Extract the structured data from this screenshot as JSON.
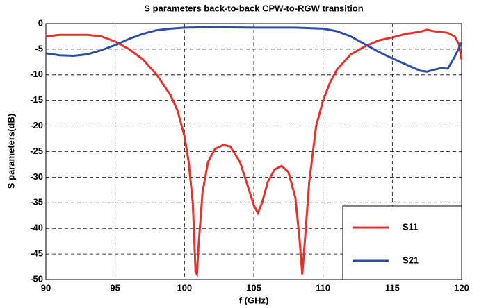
{
  "chart_data": {
    "type": "line",
    "title": "S parameters back-to-back CPW-to-RGW transition",
    "x_label": "f (GHz)",
    "y_label": "S parameters(dB)",
    "xlim": [
      90,
      120
    ],
    "xticks": [
      90,
      95,
      100,
      105,
      110,
      115,
      120
    ],
    "ylim": [
      -50,
      0
    ],
    "yticks": [
      0,
      -5,
      -10,
      -15,
      -20,
      -25,
      -30,
      -35,
      -40,
      -45,
      -50
    ],
    "grid": true,
    "legend": "lower right",
    "series": [
      {
        "name": "S11",
        "color": "#e8302c",
        "x": [
          90,
          91,
          93,
          94,
          95,
          96,
          97,
          98,
          99,
          99.5,
          100,
          100.3,
          100.6,
          100.8,
          100.9,
          101,
          101.3,
          101.7,
          102.2,
          102.8,
          103.3,
          104,
          104.6,
          105,
          105.3,
          105.6,
          106,
          106.5,
          107,
          107.5,
          108,
          108.3,
          108.5,
          108.7,
          109,
          109.5,
          110,
          110.5,
          111,
          112,
          113,
          114,
          115,
          116,
          117,
          117.5,
          118,
          119,
          119.5,
          119.8,
          120
        ],
        "values": [
          -2.5,
          -2.2,
          -2.2,
          -2.5,
          -3.5,
          -5,
          -7,
          -10,
          -14,
          -17,
          -22,
          -27,
          -35,
          -48.5,
          -49,
          -44,
          -33,
          -27,
          -24.5,
          -23.7,
          -24,
          -27,
          -32,
          -35.5,
          -37,
          -35,
          -31,
          -28.5,
          -27.8,
          -29,
          -34,
          -42,
          -49,
          -42,
          -31,
          -20,
          -15,
          -11.5,
          -9,
          -6,
          -4.5,
          -3.3,
          -2.7,
          -2,
          -1.6,
          -1.2,
          -1.5,
          -1.8,
          -2.5,
          -4,
          -7
        ]
      },
      {
        "name": "S21",
        "color": "#2e4fa3",
        "x": [
          90,
          91,
          92,
          93,
          94,
          95,
          96,
          97,
          98,
          99,
          100,
          102,
          105,
          108,
          110,
          111,
          112,
          113,
          114,
          115,
          116,
          117,
          117.5,
          118,
          118.5,
          119,
          119.5,
          120
        ],
        "values": [
          -5.8,
          -6.2,
          -6.3,
          -6,
          -5.2,
          -4.2,
          -3,
          -2,
          -1.3,
          -1,
          -0.8,
          -0.7,
          -0.8,
          -0.8,
          -1,
          -1.5,
          -2.5,
          -4,
          -5.5,
          -6.8,
          -8,
          -9.2,
          -9.4,
          -9,
          -8.7,
          -8.8,
          -6.5,
          -3.7
        ]
      }
    ]
  }
}
